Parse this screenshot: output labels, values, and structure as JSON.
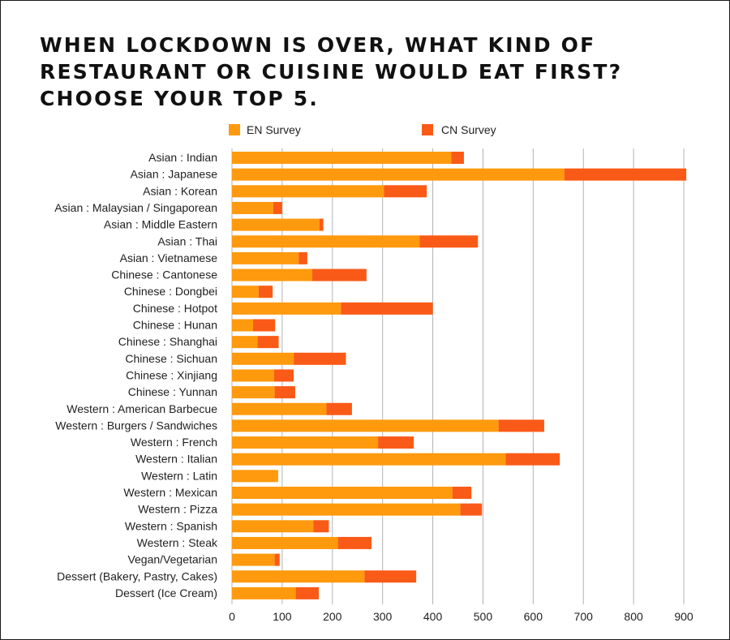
{
  "chart_data": {
    "type": "bar",
    "orientation": "horizontal",
    "stacked": true,
    "title_lines": [
      "WHEN LOCKDOWN IS OVER, WHAT KIND OF",
      "RESTAURANT OR CUISINE WOULD EAT FIRST?",
      "CHOOSE YOUR TOP 5."
    ],
    "categories": [
      "Asian : Indian",
      "Asian : Japanese",
      "Asian : Korean",
      "Asian : Malaysian / Singaporean",
      "Asian : Middle Eastern",
      "Asian : Thai",
      "Asian : Vietnamese",
      "Chinese : Cantonese",
      "Chinese : Dongbei",
      "Chinese : Hotpot",
      "Chinese : Hunan",
      "Chinese : Shanghai",
      "Chinese : Sichuan",
      "Chinese : Xinjiang",
      "Chinese : Yunnan",
      "Western : American Barbecue",
      "Western : Burgers / Sandwiches",
      "Western : French",
      "Western : Italian",
      "Western : Latin",
      "Western : Mexican",
      "Western : Pizza",
      "Western : Spanish",
      "Western : Steak",
      "Vegan/Vegetarian",
      "Dessert (Bakery, Pastry, Cakes)",
      "Dessert (Ice Cream)"
    ],
    "series": [
      {
        "name": "EN Survey",
        "color": "#ff9a0e",
        "values": [
          437,
          662,
          303,
          82,
          174,
          374,
          133,
          160,
          53,
          217,
          42,
          51,
          123,
          84,
          85,
          188,
          531,
          291,
          545,
          92,
          439,
          455,
          162,
          211,
          85,
          264,
          127
        ]
      },
      {
        "name": "CN Survey",
        "color": "#fa5a17",
        "values": [
          25,
          243,
          85,
          18,
          8,
          116,
          17,
          108,
          28,
          183,
          44,
          42,
          104,
          39,
          41,
          51,
          91,
          71,
          108,
          0,
          38,
          43,
          31,
          67,
          10,
          103,
          46
        ]
      }
    ],
    "x_ticks": [
      0,
      100,
      200,
      300,
      400,
      500,
      600,
      700,
      800,
      900
    ],
    "xlim": [
      0,
      900
    ],
    "grid": "vertical",
    "legend_position": "top"
  }
}
